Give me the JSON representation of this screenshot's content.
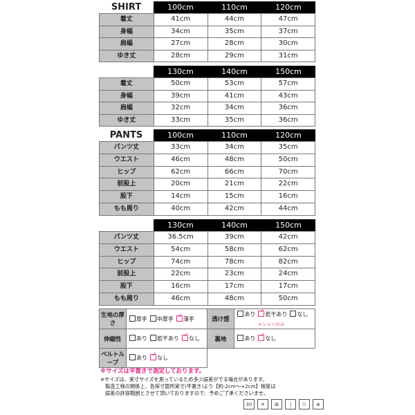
{
  "tables": [
    {
      "title": "SHIRT",
      "sizes": [
        "100cm",
        "110cm",
        "120cm"
      ],
      "rows": [
        {
          "label": "着丈",
          "values": [
            "41cm",
            "44cm",
            "47cm"
          ]
        },
        {
          "label": "身幅",
          "values": [
            "34cm",
            "35cm",
            "37cm"
          ]
        },
        {
          "label": "肩幅",
          "values": [
            "27cm",
            "28cm",
            "30cm"
          ]
        },
        {
          "label": "ゆき丈",
          "values": [
            "28cm",
            "29cm",
            "31cm"
          ]
        }
      ]
    },
    {
      "title": "",
      "sizes": [
        "130cm",
        "140cm",
        "150cm"
      ],
      "rows": [
        {
          "label": "着丈",
          "values": [
            "50cm",
            "53cm",
            "57cm"
          ]
        },
        {
          "label": "身幅",
          "values": [
            "39cm",
            "41cm",
            "43cm"
          ]
        },
        {
          "label": "肩幅",
          "values": [
            "32cm",
            "34cm",
            "36cm"
          ]
        },
        {
          "label": "ゆき丈",
          "values": [
            "33cm",
            "35cm",
            "36cm"
          ]
        }
      ]
    },
    {
      "title": "PANTS",
      "sizes": [
        "100cm",
        "110cm",
        "120cm"
      ],
      "rows": [
        {
          "label": "パンツ丈",
          "values": [
            "33cm",
            "34cm",
            "35cm"
          ]
        },
        {
          "label": "ウエスト",
          "values": [
            "46cm",
            "48cm",
            "50cm"
          ]
        },
        {
          "label": "ヒップ",
          "values": [
            "62cm",
            "66cm",
            "70cm"
          ]
        },
        {
          "label": "前股上",
          "values": [
            "20cm",
            "21cm",
            "22cm"
          ]
        },
        {
          "label": "股下",
          "values": [
            "14cm",
            "15cm",
            "16cm"
          ]
        },
        {
          "label": "もも周り",
          "values": [
            "40cm",
            "42cm",
            "44cm"
          ]
        }
      ]
    },
    {
      "title": "",
      "sizes": [
        "130cm",
        "140cm",
        "150cm"
      ],
      "rows": [
        {
          "label": "パンツ丈",
          "values": [
            "36.5cm",
            "39cm",
            "42cm"
          ]
        },
        {
          "label": "ウエスト",
          "values": [
            "54cm",
            "58cm",
            "62cm"
          ]
        },
        {
          "label": "ヒップ",
          "values": [
            "74cm",
            "78cm",
            "82cm"
          ]
        },
        {
          "label": "前股上",
          "values": [
            "22cm",
            "23cm",
            "24cm"
          ]
        },
        {
          "label": "股下",
          "values": [
            "16cm",
            "17cm",
            "17cm"
          ]
        },
        {
          "label": "もも周り",
          "values": [
            "46cm",
            "48cm",
            "50cm"
          ]
        }
      ]
    }
  ],
  "fabric": {
    "thickness": {
      "label": "生地の厚さ",
      "options": [
        {
          "text": "厚手",
          "checked": false
        },
        {
          "text": "中厚手",
          "checked": false
        },
        {
          "text": "薄手",
          "checked": true
        }
      ]
    },
    "sheer": {
      "label": "透け感",
      "options": [
        {
          "text": "あり",
          "checked": false
        },
        {
          "text": "若干あり",
          "checked": true
        },
        {
          "text": "なし",
          "checked": false
        }
      ],
      "note": "※シャツのみ"
    },
    "stretch": {
      "label": "伸縮性",
      "options": [
        {
          "text": "あり",
          "checked": false
        },
        {
          "text": "若干あり",
          "checked": false
        },
        {
          "text": "なし",
          "checked": true
        }
      ]
    },
    "lining": {
      "label": "裏地",
      "options": [
        {
          "text": "あり",
          "checked": false
        },
        {
          "text": "なし",
          "checked": true
        }
      ]
    },
    "belt_loop": {
      "label": "ベルトループ",
      "options": [
        {
          "text": "あり",
          "checked": false
        },
        {
          "text": "なし",
          "checked": true
        }
      ]
    }
  },
  "notes": {
    "highlight": "※サイズは平置きで測定しております。",
    "line1": "※サイズは、実寸サイズを測っているため多少誤差がでる場合があります。",
    "line2": "製造工程の関係上、各採寸箇所実寸(平置き)より【約-2cm～+2cm】程度は",
    "line3": "誤差の許容範囲とさせて頂いておりますので、予めご了承くださいませ。"
  },
  "care_icons": [
    {
      "name": "wash-30-icon",
      "text": "30"
    },
    {
      "name": "no-bleach-icon",
      "text": "✕"
    },
    {
      "name": "no-tumble-dry-icon",
      "text": "⊠"
    },
    {
      "name": "line-dry-icon",
      "text": "|"
    },
    {
      "name": "iron-low-icon",
      "text": "⏢"
    },
    {
      "name": "no-dry-clean-icon",
      "text": "⊗"
    }
  ],
  "colors": {
    "accent": "#e0308a",
    "header_bg": "#000000",
    "label_bg": "#c4c4c4"
  }
}
